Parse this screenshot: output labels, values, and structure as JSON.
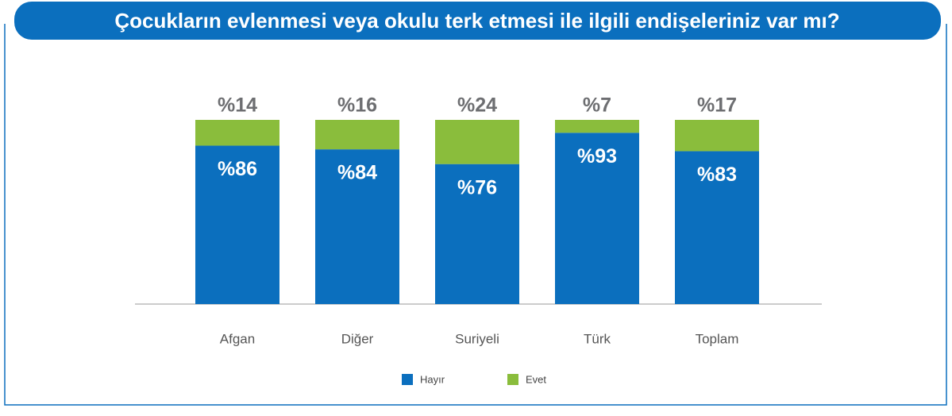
{
  "chart_data": {
    "type": "stacked_bar",
    "title": "Çocukların evlenmesi veya okulu terk etmesi ile ilgili endişeleriniz var mı?",
    "categories": [
      "Afgan",
      "Diğer",
      "Suriyeli",
      "Türk",
      "Toplam"
    ],
    "series": [
      {
        "name": "Hayır",
        "color": "#0b6fbe",
        "values": [
          86,
          84,
          76,
          93,
          83
        ],
        "value_labels": [
          "%86",
          "%84",
          "%76",
          "%93",
          "%83"
        ]
      },
      {
        "name": "Evet",
        "color": "#8abd3c",
        "values": [
          14,
          16,
          24,
          7,
          17
        ],
        "value_labels": [
          "%14",
          "%16",
          "%24",
          "%7",
          "%17"
        ]
      }
    ],
    "legend": "bottom"
  }
}
